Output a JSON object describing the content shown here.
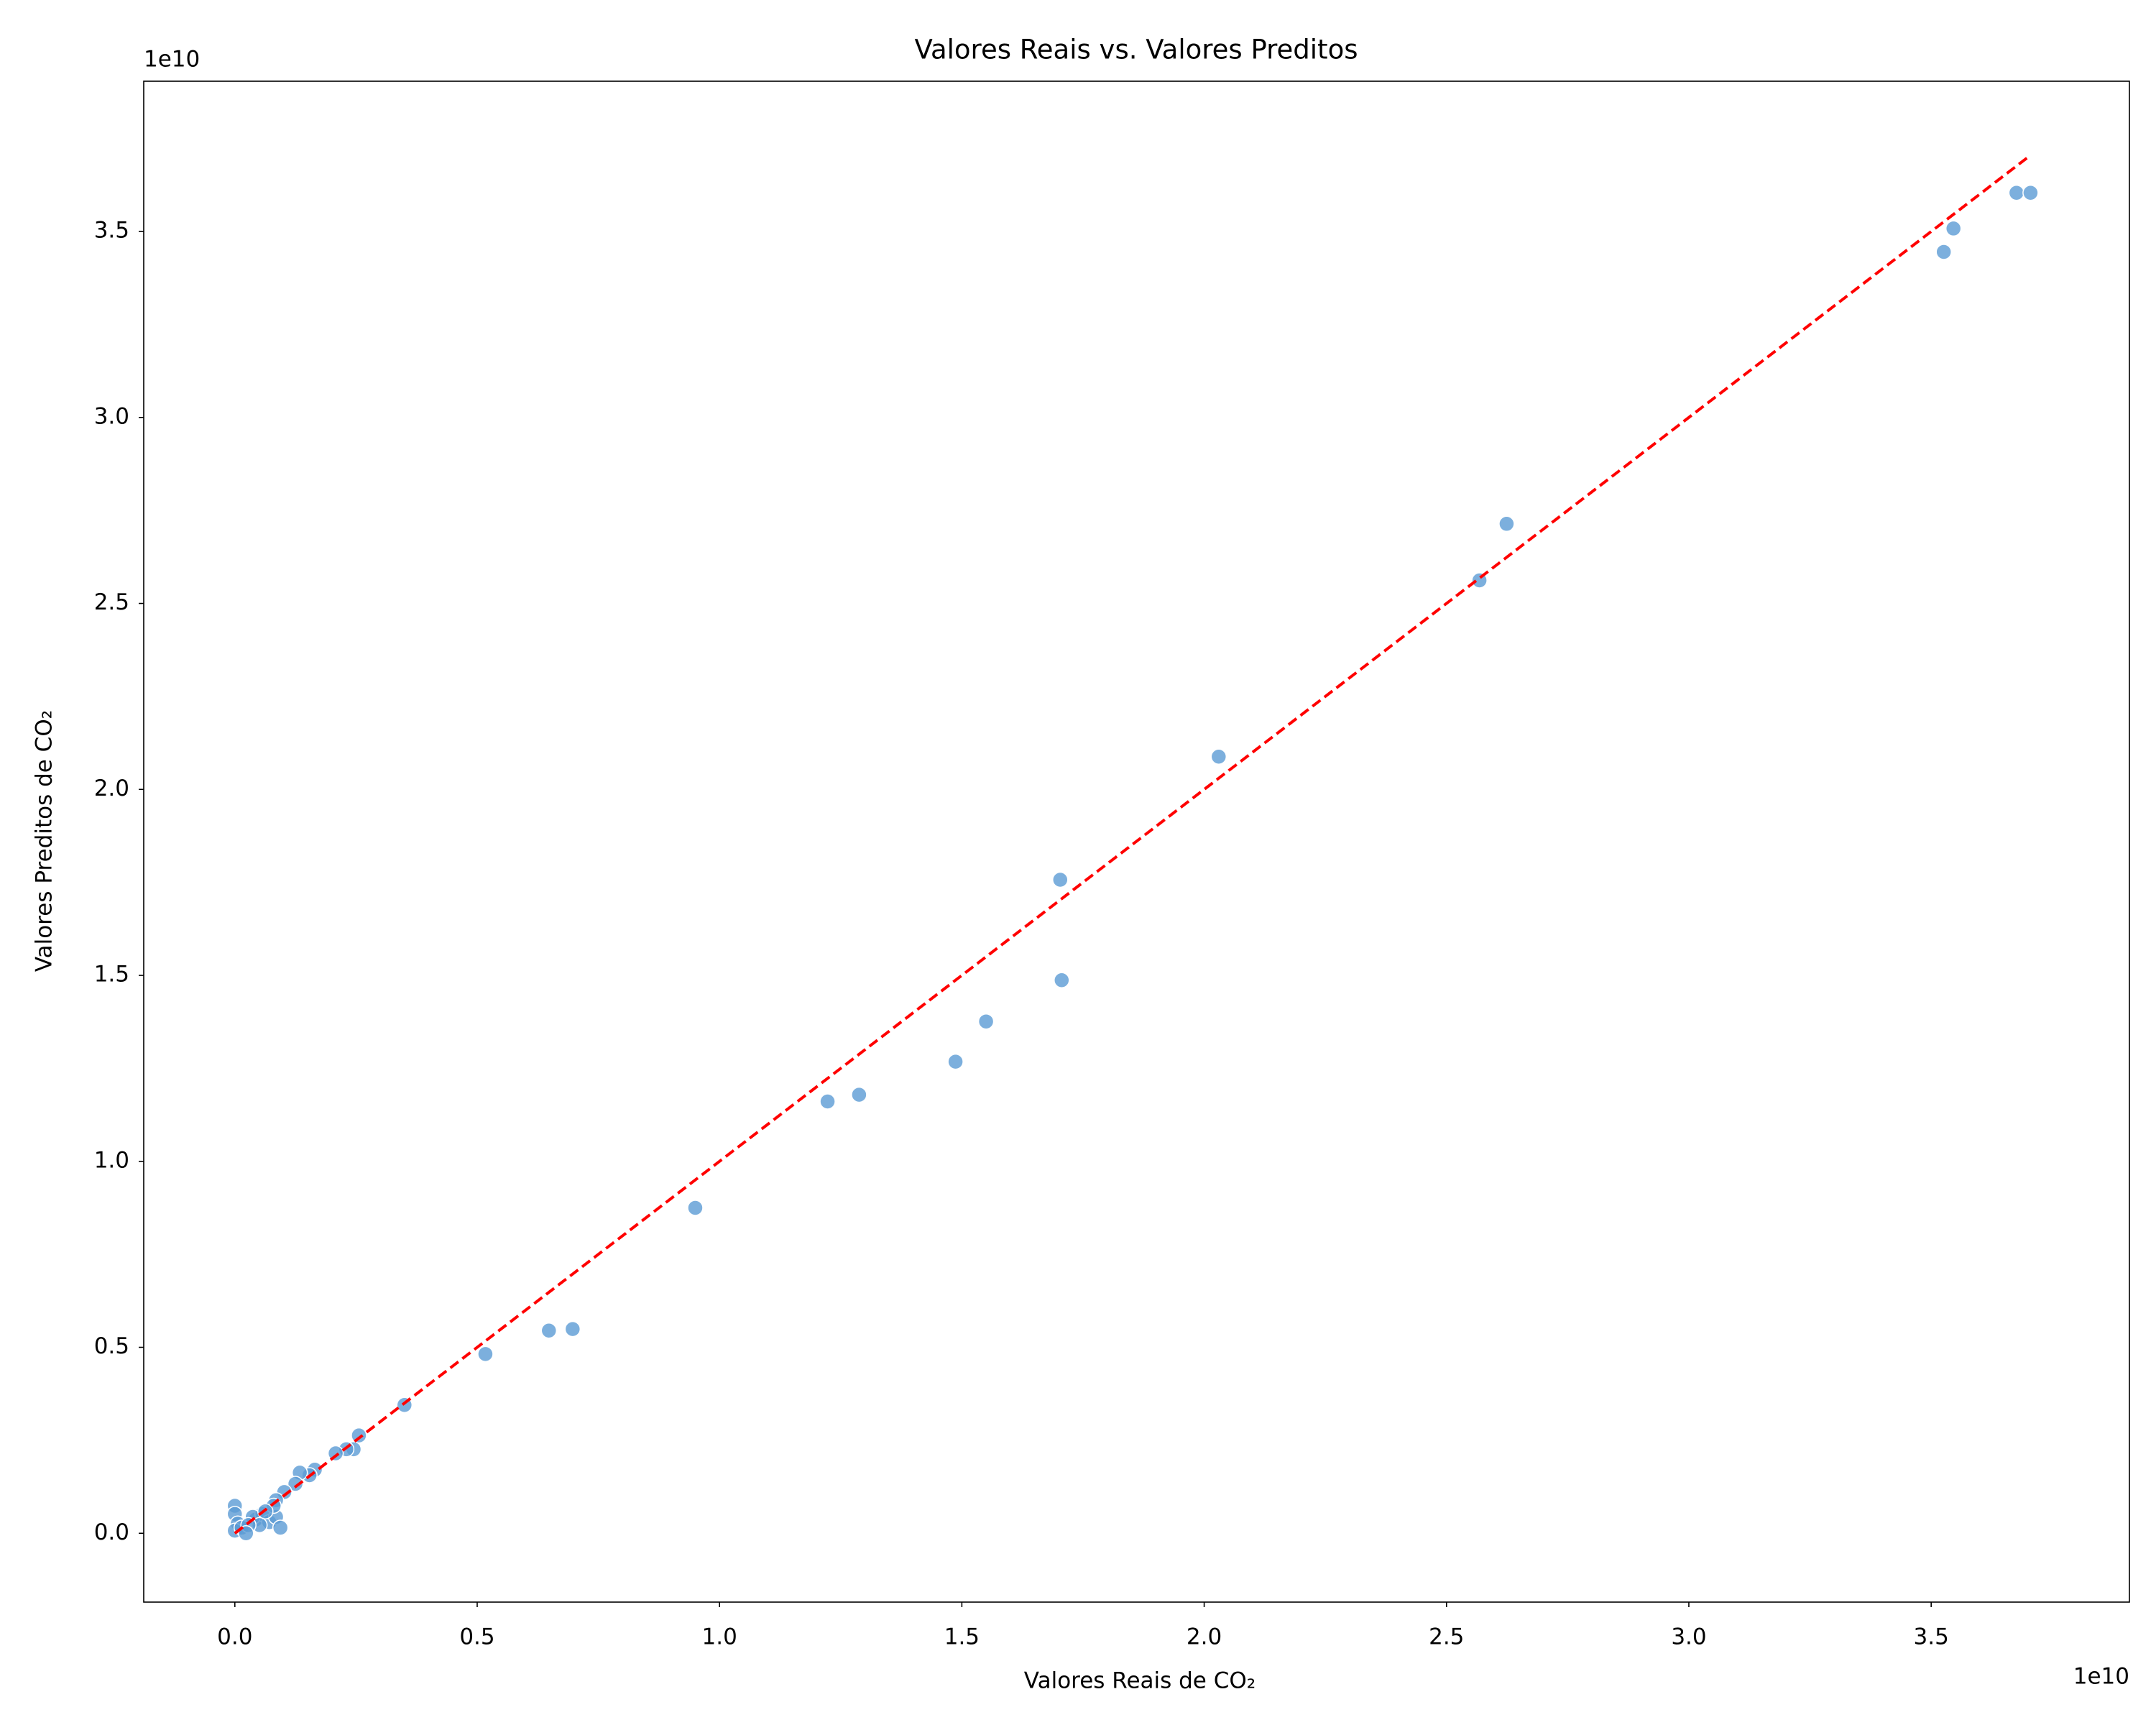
{
  "chart_data": {
    "type": "scatter",
    "title": "Valores Reais vs. Valores Preditos",
    "x_label": "Valores Reais de CO₂",
    "y_label": "Valores Preditos de CO₂",
    "x_offset_label": "1e10",
    "y_offset_label": "1e10",
    "xlim": [
      -0.188,
      3.909
    ],
    "ylim": [
      -0.185,
      3.904
    ],
    "xticks": [
      0.0,
      0.5,
      1.0,
      1.5,
      2.0,
      2.5,
      3.0,
      3.5
    ],
    "yticks": [
      0.0,
      0.5,
      1.0,
      1.5,
      2.0,
      2.5,
      3.0,
      3.5
    ],
    "series": [
      {
        "color": "#5b9bd5",
        "x": [
          3.676,
          3.705,
          3.546,
          3.526,
          2.624,
          2.568,
          2.03,
          1.703,
          1.706,
          1.55,
          1.487,
          1.288,
          1.223,
          0.95,
          0.697,
          0.648,
          0.517,
          0.35,
          0.256,
          0.245,
          0.23,
          0.208,
          0.165,
          0.154,
          0.134,
          0.125,
          0.102,
          0.085,
          0.0,
          0.0,
          0.006,
          0.0,
          0.014,
          0.043,
          0.057,
          0.037,
          0.071,
          0.085,
          0.094,
          0.051,
          0.028,
          0.023,
          0.08,
          0.063
        ],
        "values": [
          3.604,
          3.604,
          3.508,
          3.445,
          2.714,
          2.562,
          2.088,
          1.757,
          1.487,
          1.376,
          1.268,
          1.179,
          1.161,
          0.875,
          0.549,
          0.545,
          0.482,
          0.345,
          0.263,
          0.226,
          0.226,
          0.215,
          0.171,
          0.156,
          0.163,
          0.133,
          0.111,
          0.089,
          0.074,
          0.052,
          0.026,
          0.007,
          0.015,
          0.037,
          0.052,
          0.044,
          0.03,
          0.044,
          0.015,
          0.022,
          0.022,
          0.0,
          0.074,
          0.059
        ]
      },
      {
        "type": "line",
        "color": "#ff0000",
        "x": [
          0.0,
          3.705
        ],
        "values": [
          0.0,
          3.705
        ]
      }
    ]
  }
}
